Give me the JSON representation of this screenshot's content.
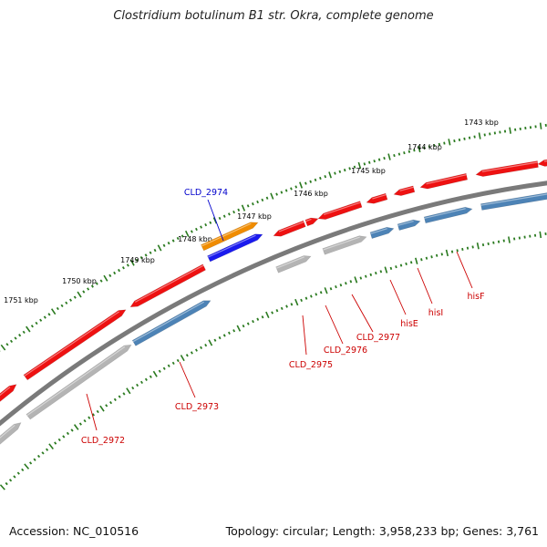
{
  "title": "Clostridium botulinum B1 str. Okra, complete genome",
  "footer": {
    "accession": "Accession: NC_010516",
    "summary": "Topology: circular; Length: 3,958,233 bp; Genes: 3,761"
  },
  "colors": {
    "backbone": "#7a7a7a",
    "tick": "#2a7a1f",
    "gene_red": "#ee1111",
    "gene_grey": "#b4b4b4",
    "gene_steelblue": "#4d83b6",
    "gene_orange": "#f08c00",
    "gene_blue": "#1a1aee",
    "label_red": "#cc0000",
    "label_blue": "#0000cc"
  },
  "kbp_ticks": [
    "1743 kbp",
    "1744 kbp",
    "1745 kbp",
    "1746 kbp",
    "1747 kbp",
    "1748 kbp",
    "1749 kbp",
    "1750 kbp",
    "1751 kbp"
  ],
  "gene_labels": [
    {
      "text": "CLD_2974",
      "color": "blue"
    },
    {
      "text": "CLD_2972",
      "color": "red"
    },
    {
      "text": "CLD_2973",
      "color": "red"
    },
    {
      "text": "CLD_2975",
      "color": "red"
    },
    {
      "text": "CLD_2976",
      "color": "red"
    },
    {
      "text": "CLD_2977",
      "color": "red"
    },
    {
      "text": "hisE",
      "color": "red"
    },
    {
      "text": "hisI",
      "color": "red"
    },
    {
      "text": "hisF",
      "color": "red"
    }
  ]
}
